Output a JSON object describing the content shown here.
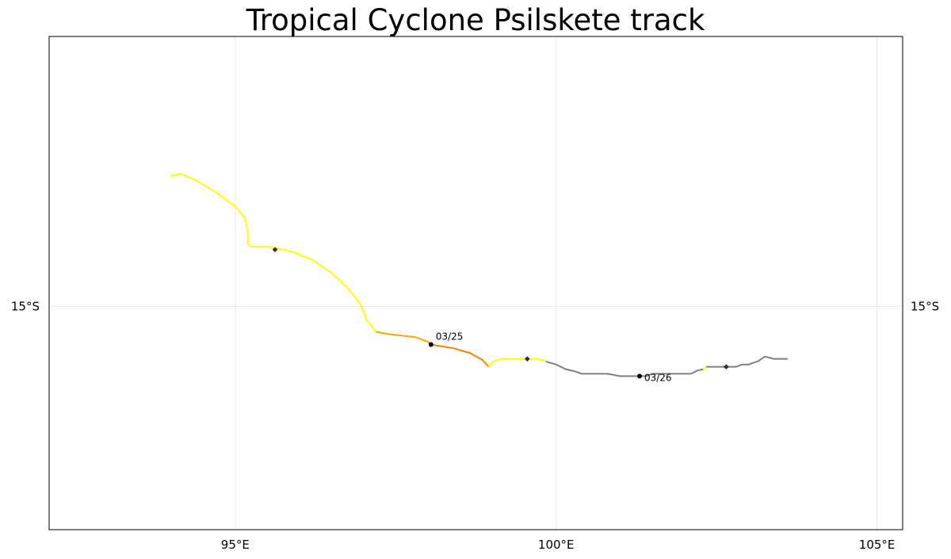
{
  "title": "Tropical Cyclone Psilskete track",
  "map": {
    "lon_range": [
      92.1,
      105.4
    ],
    "lat_range": [
      -19.8,
      -9.2
    ],
    "grid": true,
    "x_ticks": [
      {
        "lon": 95,
        "label": "95°E"
      },
      {
        "lon": 100,
        "label": "100°E"
      },
      {
        "lon": 105,
        "label": "105°E"
      }
    ],
    "y_ticks": [
      {
        "lat": -15,
        "label": "15°S"
      }
    ]
  },
  "colors": {
    "yellow": "#ffff00",
    "orange_light": "#ffa500",
    "orange_dark": "#ff8000",
    "gray": "#808080",
    "frame": "#000000",
    "grid": "#e8e8e8"
  },
  "track_segments": [
    {
      "color": "yellow",
      "points": [
        [
          94.0,
          -12.2
        ],
        [
          94.15,
          -12.15
        ],
        [
          94.4,
          -12.3
        ],
        [
          94.7,
          -12.55
        ],
        [
          95.0,
          -12.85
        ],
        [
          95.15,
          -13.1
        ],
        [
          95.2,
          -13.4
        ],
        [
          95.2,
          -13.65
        ],
        [
          95.25,
          -13.72
        ],
        [
          95.5,
          -13.72
        ],
        [
          95.65,
          -13.75
        ],
        [
          95.9,
          -13.83
        ],
        [
          96.2,
          -14.0
        ],
        [
          96.5,
          -14.28
        ],
        [
          96.75,
          -14.6
        ],
        [
          96.95,
          -14.95
        ],
        [
          97.05,
          -15.3
        ],
        [
          97.2,
          -15.55
        ]
      ]
    },
    {
      "color": "orange_light",
      "points": [
        [
          97.2,
          -15.55
        ],
        [
          97.4,
          -15.6
        ],
        [
          97.8,
          -15.66
        ],
        [
          98.0,
          -15.76
        ],
        [
          98.05,
          -15.82
        ]
      ]
    },
    {
      "color": "orange_dark",
      "points": [
        [
          98.05,
          -15.82
        ],
        [
          98.4,
          -15.9
        ],
        [
          98.65,
          -16.0
        ],
        [
          98.85,
          -16.15
        ],
        [
          98.95,
          -16.3
        ]
      ]
    },
    {
      "color": "yellow",
      "points": [
        [
          98.95,
          -16.3
        ],
        [
          99.0,
          -16.2
        ],
        [
          99.15,
          -16.13
        ],
        [
          99.5,
          -16.13
        ],
        [
          99.7,
          -16.13
        ],
        [
          99.8,
          -16.16
        ],
        [
          99.85,
          -16.19
        ]
      ]
    },
    {
      "color": "gray",
      "points": [
        [
          99.85,
          -16.19
        ],
        [
          100.0,
          -16.25
        ],
        [
          100.15,
          -16.35
        ],
        [
          100.3,
          -16.4
        ],
        [
          100.4,
          -16.45
        ],
        [
          100.6,
          -16.45
        ],
        [
          100.8,
          -16.45
        ],
        [
          101.0,
          -16.5
        ],
        [
          101.2,
          -16.5
        ],
        [
          101.4,
          -16.5
        ],
        [
          101.5,
          -16.45
        ],
        [
          101.7,
          -16.45
        ],
        [
          101.9,
          -16.45
        ],
        [
          102.1,
          -16.45
        ],
        [
          102.2,
          -16.38
        ],
        [
          102.3,
          -16.35
        ]
      ]
    },
    {
      "color": "yellow",
      "points": [
        [
          102.3,
          -16.35
        ],
        [
          102.35,
          -16.3
        ]
      ]
    },
    {
      "color": "gray",
      "points": [
        [
          102.35,
          -16.3
        ],
        [
          102.6,
          -16.3
        ],
        [
          102.8,
          -16.3
        ],
        [
          102.9,
          -16.25
        ],
        [
          103.0,
          -16.25
        ],
        [
          103.1,
          -16.2
        ],
        [
          103.15,
          -16.18
        ],
        [
          103.25,
          -16.08
        ],
        [
          103.4,
          -16.13
        ],
        [
          103.6,
          -16.13
        ]
      ]
    }
  ],
  "markers": [
    {
      "type": "diamond",
      "lon": 95.62,
      "lat": -13.78
    },
    {
      "type": "dot",
      "lon": 98.05,
      "lat": -15.82,
      "label": "03/25",
      "label_pos": "above-right"
    },
    {
      "type": "diamond",
      "lon": 99.55,
      "lat": -16.13
    },
    {
      "type": "dot",
      "lon": 101.3,
      "lat": -16.5,
      "label": "03/26",
      "label_pos": "right"
    },
    {
      "type": "diamond",
      "lon": 102.65,
      "lat": -16.3
    }
  ]
}
